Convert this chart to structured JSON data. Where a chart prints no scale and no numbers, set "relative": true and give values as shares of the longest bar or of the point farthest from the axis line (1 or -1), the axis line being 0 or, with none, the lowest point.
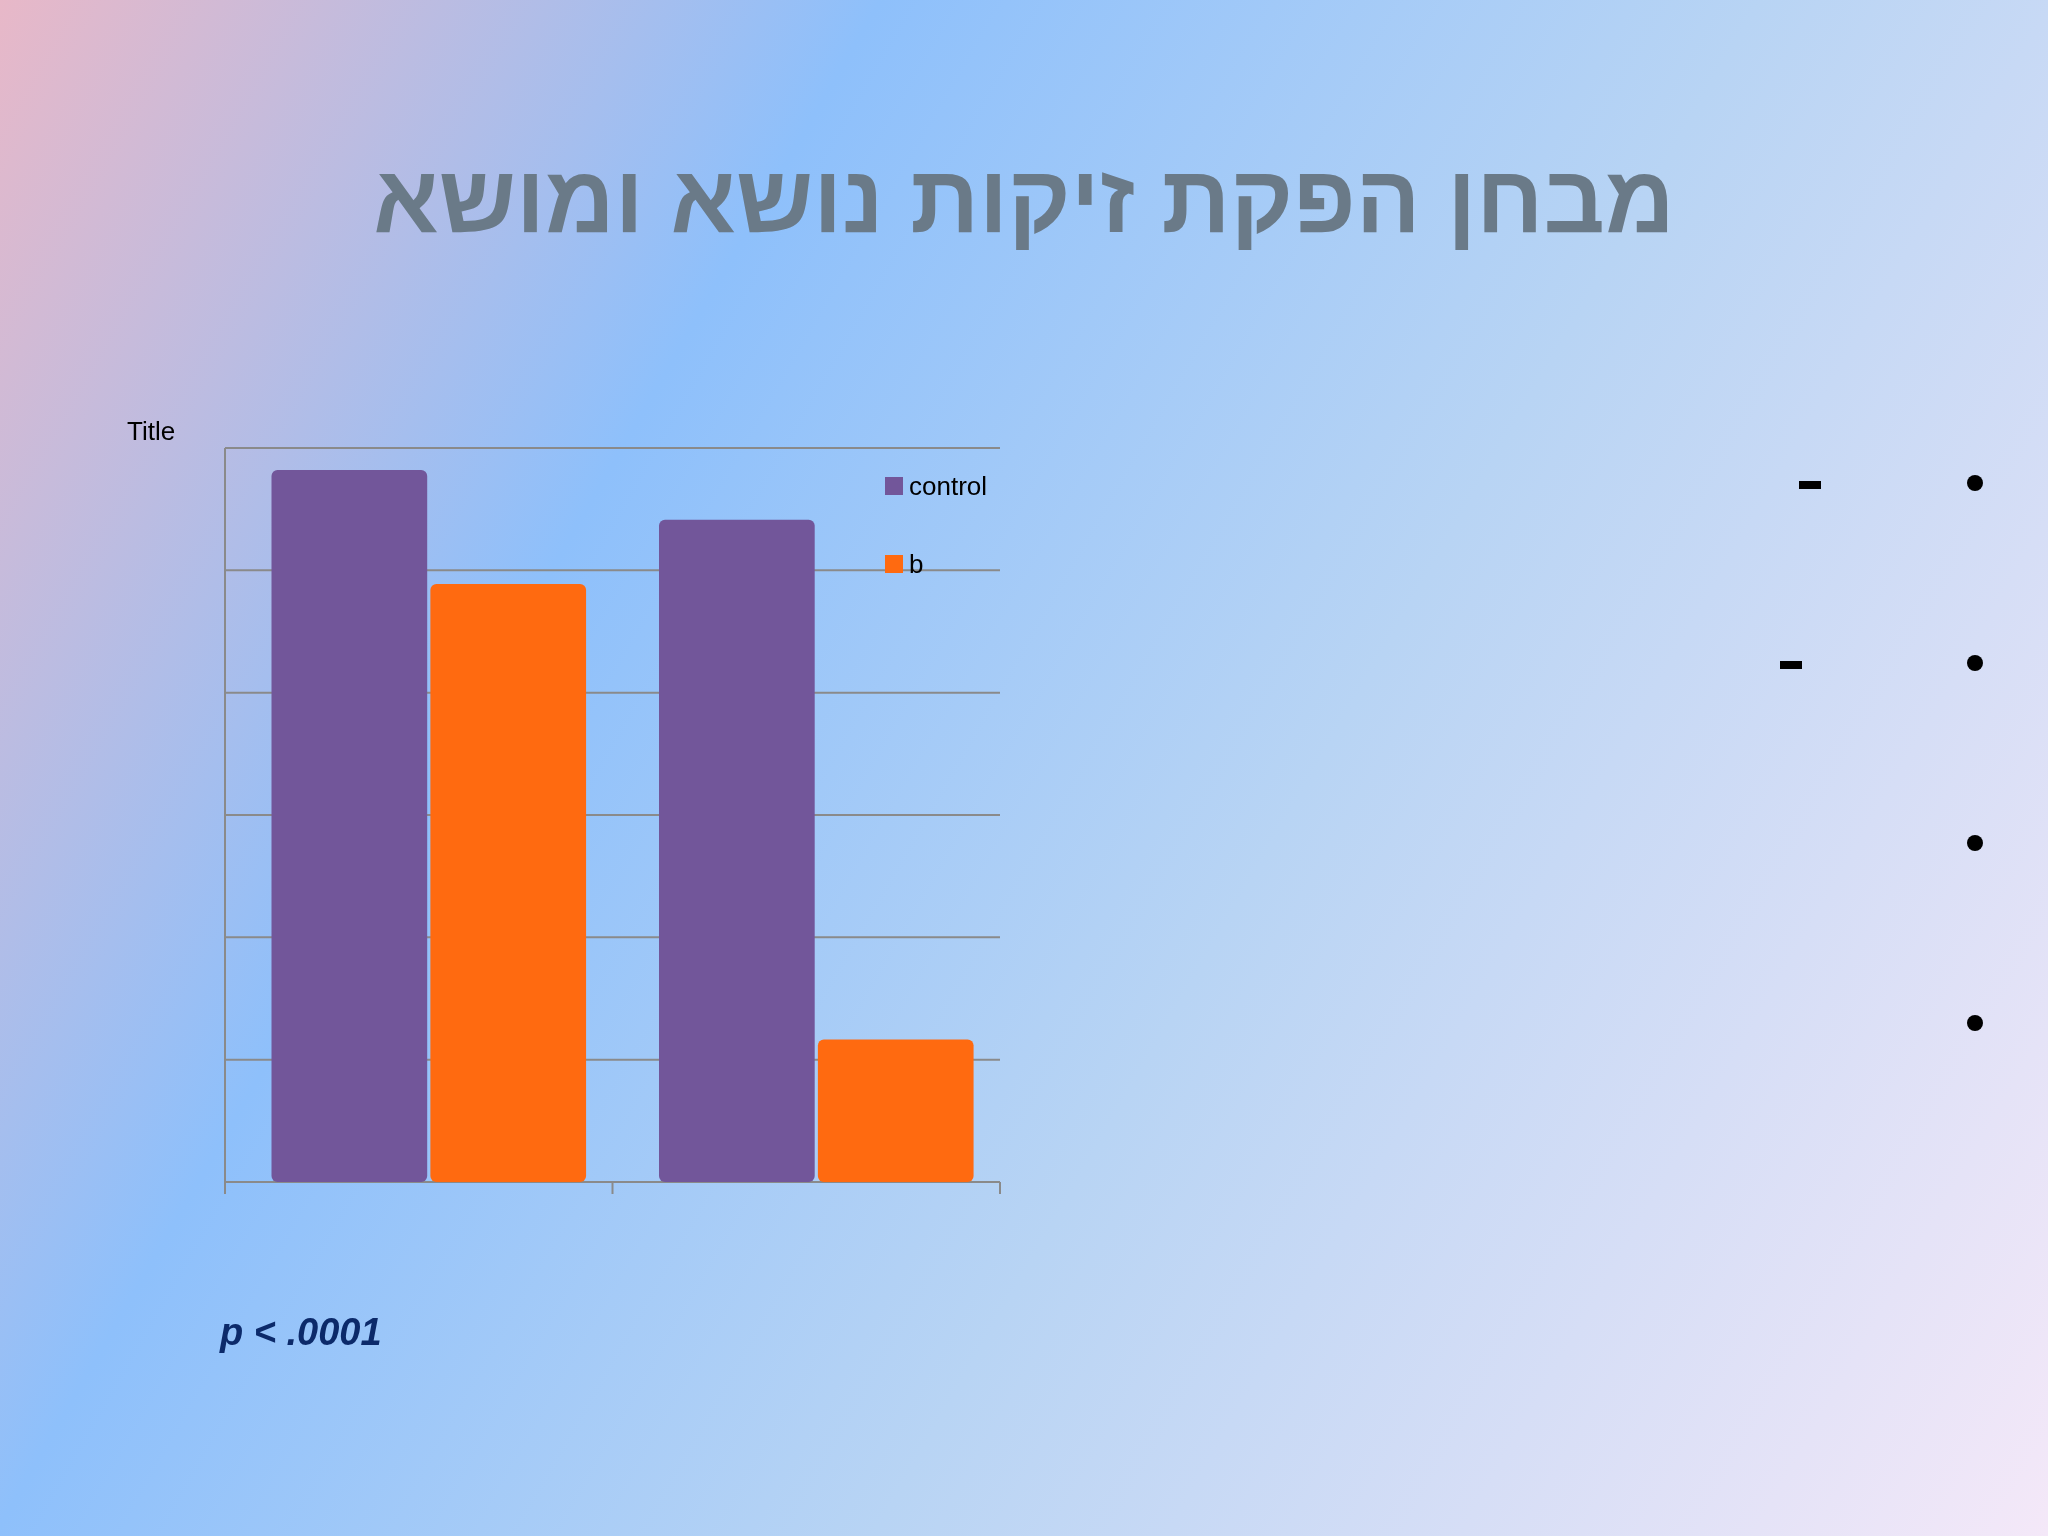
{
  "chart_data": {
    "type": "bar",
    "title": "מבחן הפקת זיקות נושא ומושא",
    "ylabel": "Title",
    "categories": [
      null,
      null
    ],
    "series": [
      {
        "name": "control",
        "color": "#72569a",
        "values": [
          1,
          0.93
        ]
      },
      {
        "name": "b",
        "color": "#ff6a10",
        "values": [
          0.84,
          0.2
        ]
      }
    ],
    "relative": true,
    "grid": "y",
    "legend": "top right",
    "annotations": [
      "p < .0001"
    ]
  }
}
